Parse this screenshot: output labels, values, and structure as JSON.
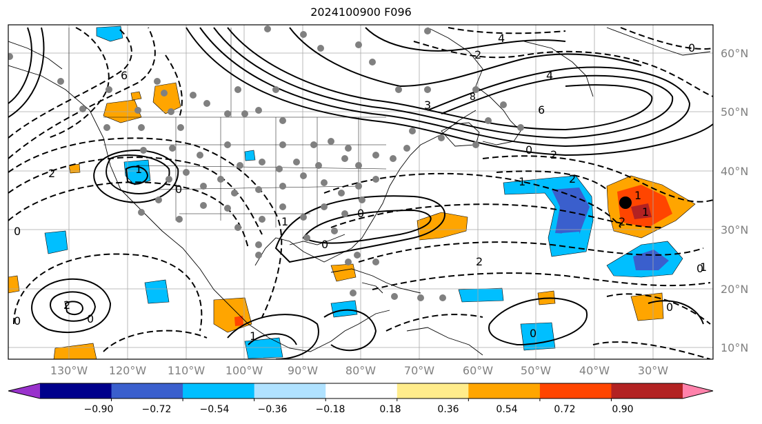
{
  "title": "2024100900 F096",
  "lat_labels": [
    "60°N",
    "50°N",
    "40°N",
    "30°N",
    "20°N",
    "10°N"
  ],
  "lon_labels": [
    "130°W",
    "120°W",
    "110°W",
    "100°W",
    "90°W",
    "80°W",
    "70°W",
    "60°W",
    "50°W",
    "40°W",
    "30°W"
  ],
  "colorbar": {
    "colors": [
      "#9932cc",
      "#00008b",
      "#3a5fcd",
      "#00bfff",
      "#b0e2ff",
      "#ffffff",
      "#ffec8b",
      "#ffa500",
      "#ff4500",
      "#b22222",
      "#ff82ab"
    ],
    "ticks": [
      "−0.90",
      "−0.72",
      "−0.54",
      "−0.36",
      "−0.18",
      "0.18",
      "0.36",
      "0.54",
      "0.72",
      "0.90"
    ]
  },
  "contour_labels": [
    "4",
    "0",
    "2",
    "6",
    "8",
    "3",
    "4",
    "6",
    "0",
    "2",
    "2",
    "1",
    "1",
    "2",
    "0",
    "1",
    "2",
    "1",
    "0",
    "1",
    "0",
    "0",
    "2",
    "0",
    "1",
    "0",
    "0",
    "2",
    "0",
    "0",
    "1"
  ],
  "marker_color": "#000000"
}
